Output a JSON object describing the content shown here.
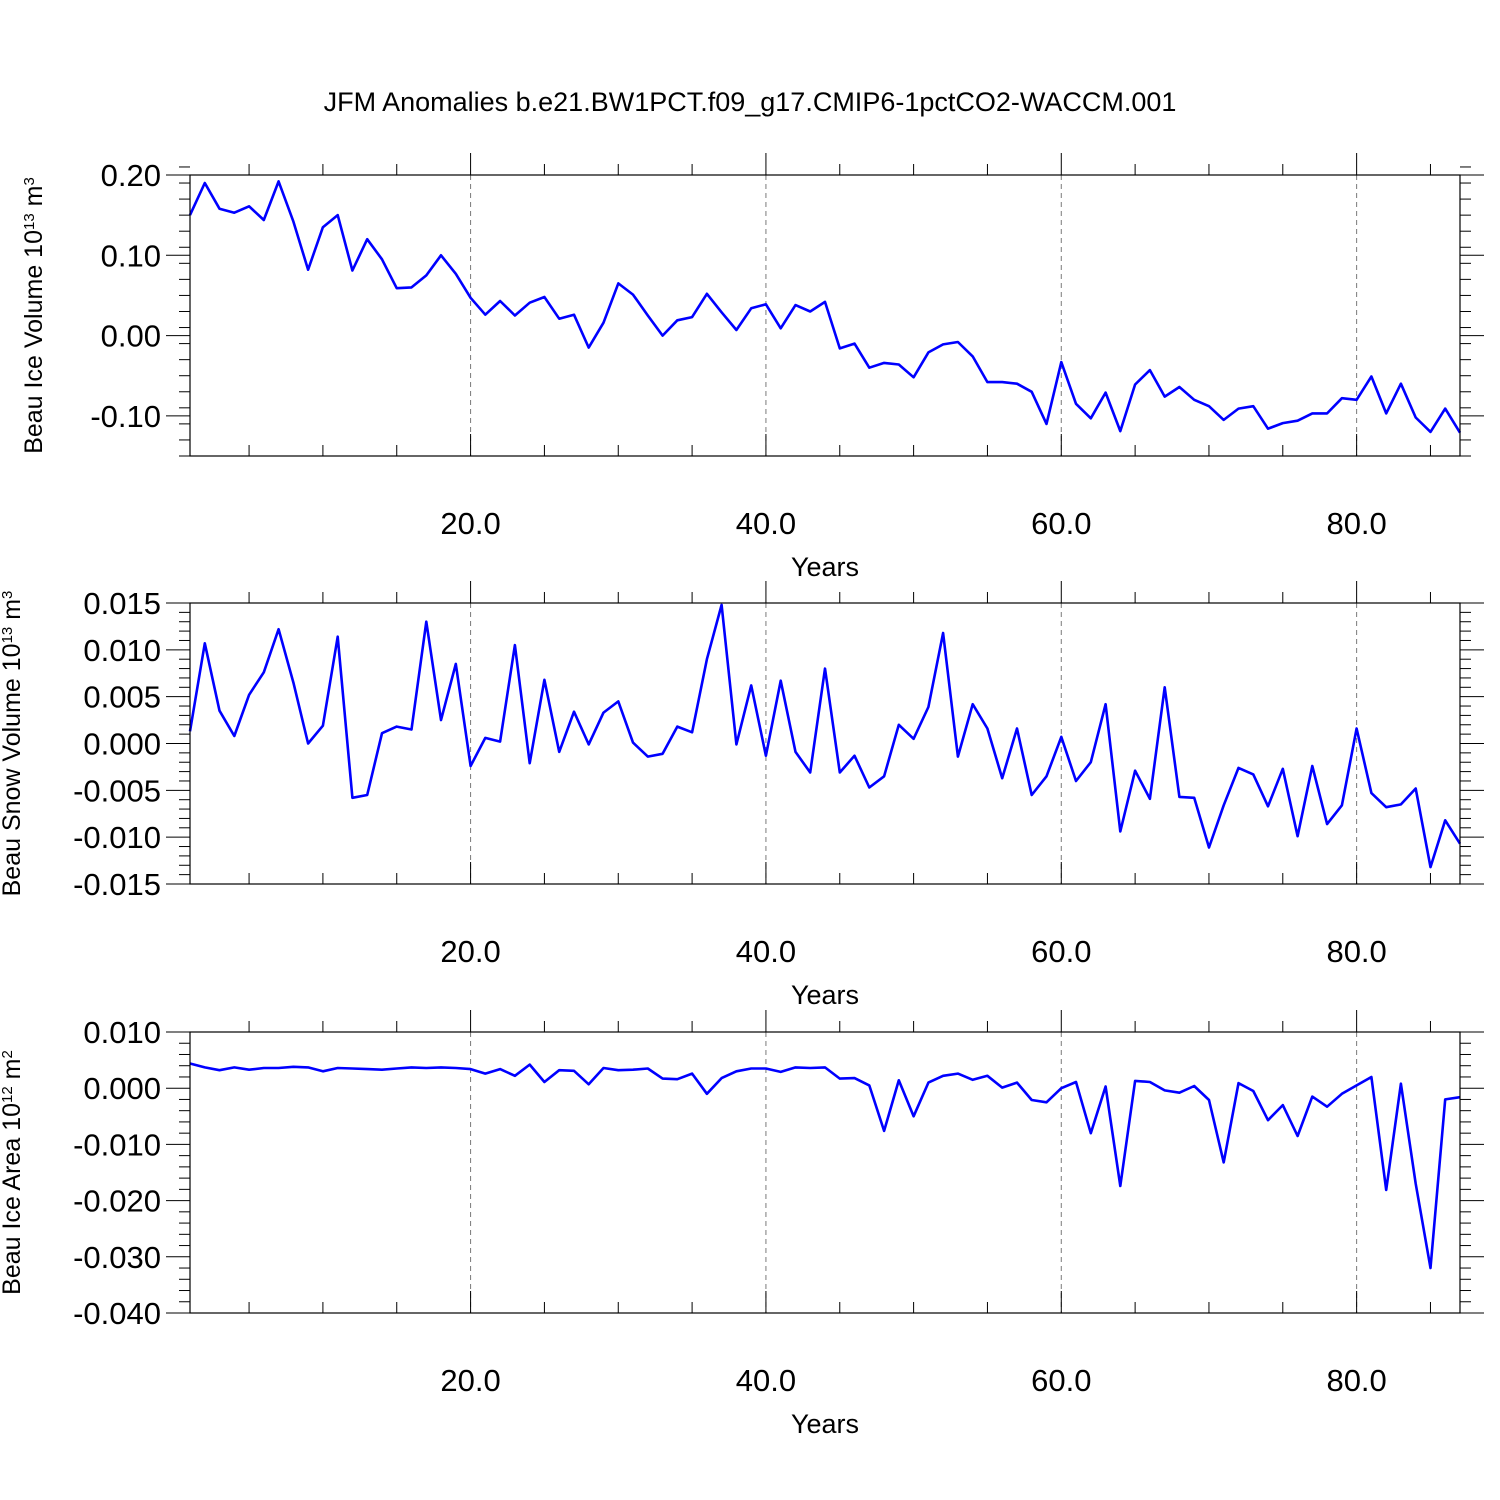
{
  "figure": {
    "title": "JFM Anomalies b.e21.BW1PCT.f09_g17.CMIP6-1pctCO2-WACCM.001"
  },
  "chart_data": [
    {
      "type": "line",
      "ylabel": {
        "prefix": "Beau Ice Volume 10",
        "exponent": "13",
        "unit": " m",
        "unit_exponent": "3"
      },
      "xlabel": "Years",
      "xlim": [
        1,
        87
      ],
      "ylim": [
        -0.15,
        0.2
      ],
      "x_ticks": [
        20,
        40,
        60,
        80
      ],
      "x_tick_labels": [
        "20.0",
        "40.0",
        "60.0",
        "80.0"
      ],
      "y_ticks": [
        0.2,
        0.1,
        0.0,
        -0.1
      ],
      "y_tick_labels": [
        "0.20",
        "0.10",
        "0.00",
        "-0.10"
      ],
      "y_minor_step": 0.02,
      "grid": "dashed vertical at x ticks",
      "line_color": "#0000ff",
      "x": [
        1,
        2,
        3,
        4,
        5,
        6,
        7,
        8,
        9,
        10,
        11,
        12,
        13,
        14,
        15,
        16,
        17,
        18,
        19,
        20,
        21,
        22,
        23,
        24,
        25,
        26,
        27,
        28,
        29,
        30,
        31,
        32,
        33,
        34,
        35,
        36,
        37,
        38,
        39,
        40,
        41,
        42,
        43,
        44,
        45,
        46,
        47,
        48,
        49,
        50,
        51,
        52,
        53,
        54,
        55,
        56,
        57,
        58,
        59,
        60,
        61,
        62,
        63,
        64,
        65,
        66,
        67,
        68,
        69,
        70,
        71,
        72,
        73,
        74,
        75,
        76,
        77,
        78,
        79,
        80,
        81,
        82,
        83,
        84,
        85,
        86,
        87
      ],
      "values": [
        0.15,
        0.19,
        0.158,
        0.153,
        0.161,
        0.144,
        0.192,
        0.142,
        0.082,
        0.135,
        0.15,
        0.081,
        0.12,
        0.095,
        0.059,
        0.06,
        0.075,
        0.1,
        0.077,
        0.047,
        0.026,
        0.043,
        0.025,
        0.041,
        0.048,
        0.021,
        0.026,
        -0.015,
        0.016,
        0.065,
        0.051,
        0.025,
        0.0,
        0.019,
        0.023,
        0.052,
        0.029,
        0.007,
        0.034,
        0.039,
        0.009,
        0.038,
        0.03,
        0.042,
        -0.016,
        -0.01,
        -0.04,
        -0.034,
        -0.036,
        -0.052,
        -0.021,
        -0.011,
        -0.008,
        -0.026,
        -0.058,
        -0.058,
        -0.06,
        -0.07,
        -0.11,
        -0.033,
        -0.085,
        -0.103,
        -0.071,
        -0.119,
        -0.061,
        -0.043,
        -0.076,
        -0.064,
        -0.08,
        -0.088,
        -0.105,
        -0.091,
        -0.088,
        -0.116,
        -0.109,
        -0.106,
        -0.097,
        -0.097,
        -0.078,
        -0.08,
        -0.051,
        -0.097,
        -0.06,
        -0.102,
        -0.12,
        -0.091,
        -0.121
      ]
    },
    {
      "type": "line",
      "ylabel": {
        "prefix": "Beau Snow Volume 10",
        "exponent": "13",
        "unit": " m",
        "unit_exponent": "3"
      },
      "xlabel": "Years",
      "xlim": [
        1,
        87
      ],
      "ylim": [
        -0.015,
        0.015
      ],
      "x_ticks": [
        20,
        40,
        60,
        80
      ],
      "x_tick_labels": [
        "20.0",
        "40.0",
        "60.0",
        "80.0"
      ],
      "y_ticks": [
        0.015,
        0.01,
        0.005,
        0.0,
        -0.005,
        -0.01,
        -0.015
      ],
      "y_tick_labels": [
        "0.015",
        "0.010",
        "0.005",
        "0.000",
        "-0.005",
        "-0.010",
        "-0.015"
      ],
      "y_minor_step": 0.001,
      "grid": "dashed vertical at x ticks",
      "line_color": "#0000ff",
      "x": [
        1,
        2,
        3,
        4,
        5,
        6,
        7,
        8,
        9,
        10,
        11,
        12,
        13,
        14,
        15,
        16,
        17,
        18,
        19,
        20,
        21,
        22,
        23,
        24,
        25,
        26,
        27,
        28,
        29,
        30,
        31,
        32,
        33,
        34,
        35,
        36,
        37,
        38,
        39,
        40,
        41,
        42,
        43,
        44,
        45,
        46,
        47,
        48,
        49,
        50,
        51,
        52,
        53,
        54,
        55,
        56,
        57,
        58,
        59,
        60,
        61,
        62,
        63,
        64,
        65,
        66,
        67,
        68,
        69,
        70,
        71,
        72,
        73,
        74,
        75,
        76,
        77,
        78,
        79,
        80,
        81,
        82,
        83,
        84,
        85,
        86,
        87
      ],
      "values": [
        0.0013,
        0.0107,
        0.0035,
        0.0008,
        0.0052,
        0.0076,
        0.0122,
        0.0065,
        0.0,
        0.0019,
        0.0114,
        -0.0058,
        -0.0055,
        0.0011,
        0.0018,
        0.0015,
        0.013,
        0.0025,
        0.0085,
        -0.0024,
        0.0006,
        0.0002,
        0.0105,
        -0.0021,
        0.0068,
        -0.0009,
        0.0034,
        -0.0001,
        0.0033,
        0.0045,
        0.0001,
        -0.0014,
        -0.0011,
        0.0018,
        0.0012,
        0.009,
        0.0148,
        -0.0001,
        0.0062,
        -0.0013,
        0.0067,
        -0.0009,
        -0.0031,
        0.008,
        -0.0031,
        -0.0013,
        -0.0047,
        -0.0035,
        0.002,
        0.0005,
        0.0039,
        0.0118,
        -0.0014,
        0.0042,
        0.0016,
        -0.0037,
        0.0016,
        -0.0055,
        -0.0035,
        0.0007,
        -0.004,
        -0.002,
        0.0042,
        -0.0094,
        -0.0029,
        -0.0059,
        0.006,
        -0.0057,
        -0.0058,
        -0.0111,
        -0.0066,
        -0.0026,
        -0.0033,
        -0.0067,
        -0.0027,
        -0.0099,
        -0.0024,
        -0.0086,
        -0.0066,
        0.0016,
        -0.0053,
        -0.0068,
        -0.0065,
        -0.0048,
        -0.0132,
        -0.0082,
        -0.0107
      ]
    },
    {
      "type": "line",
      "ylabel": {
        "prefix": "Beau Ice Area 10",
        "exponent": "12",
        "unit": " m",
        "unit_exponent": "2"
      },
      "xlabel": "Years",
      "xlim": [
        1,
        87
      ],
      "ylim": [
        -0.04,
        0.01
      ],
      "x_ticks": [
        20,
        40,
        60,
        80
      ],
      "x_tick_labels": [
        "20.0",
        "40.0",
        "60.0",
        "80.0"
      ],
      "y_ticks": [
        0.01,
        0.0,
        -0.01,
        -0.02,
        -0.03,
        -0.04
      ],
      "y_tick_labels": [
        "0.010",
        "0.000",
        "-0.010",
        "-0.020",
        "-0.030",
        "-0.040"
      ],
      "y_minor_step": 0.002,
      "grid": "dashed vertical at x ticks",
      "line_color": "#0000ff",
      "x": [
        1,
        2,
        3,
        4,
        5,
        6,
        7,
        8,
        9,
        10,
        11,
        12,
        13,
        14,
        15,
        16,
        17,
        18,
        19,
        20,
        21,
        22,
        23,
        24,
        25,
        26,
        27,
        28,
        29,
        30,
        31,
        32,
        33,
        34,
        35,
        36,
        37,
        38,
        39,
        40,
        41,
        42,
        43,
        44,
        45,
        46,
        47,
        48,
        49,
        50,
        51,
        52,
        53,
        54,
        55,
        56,
        57,
        58,
        59,
        60,
        61,
        62,
        63,
        64,
        65,
        66,
        67,
        68,
        69,
        70,
        71,
        72,
        73,
        74,
        75,
        76,
        77,
        78,
        79,
        80,
        81,
        82,
        83,
        84,
        85,
        86,
        87
      ],
      "values": [
        0.0044,
        0.0037,
        0.0032,
        0.0037,
        0.0033,
        0.0036,
        0.0036,
        0.0038,
        0.0037,
        0.003,
        0.0036,
        0.0035,
        0.0034,
        0.0033,
        0.0035,
        0.0037,
        0.0036,
        0.0037,
        0.0036,
        0.0034,
        0.0026,
        0.0034,
        0.0022,
        0.0042,
        0.0011,
        0.0032,
        0.0031,
        0.0007,
        0.0036,
        0.0032,
        0.0033,
        0.0035,
        0.0017,
        0.0016,
        0.0026,
        -0.001,
        0.0018,
        0.003,
        0.0035,
        0.0035,
        0.0029,
        0.0037,
        0.0036,
        0.0037,
        0.0017,
        0.0018,
        0.0005,
        -0.0076,
        0.0014,
        -0.005,
        0.001,
        0.0022,
        0.0026,
        0.0015,
        0.0022,
        0.0001,
        0.001,
        -0.0021,
        -0.0025,
        0.0,
        0.0011,
        -0.008,
        0.0003,
        -0.0174,
        0.0013,
        0.0011,
        -0.0004,
        -0.0008,
        0.0004,
        -0.0021,
        -0.0132,
        0.0009,
        -0.0005,
        -0.0057,
        -0.003,
        -0.0085,
        -0.0015,
        -0.0033,
        -0.001,
        0.0005,
        0.002,
        -0.0181,
        0.0008,
        -0.017,
        -0.032,
        -0.002,
        -0.0016
      ]
    }
  ]
}
